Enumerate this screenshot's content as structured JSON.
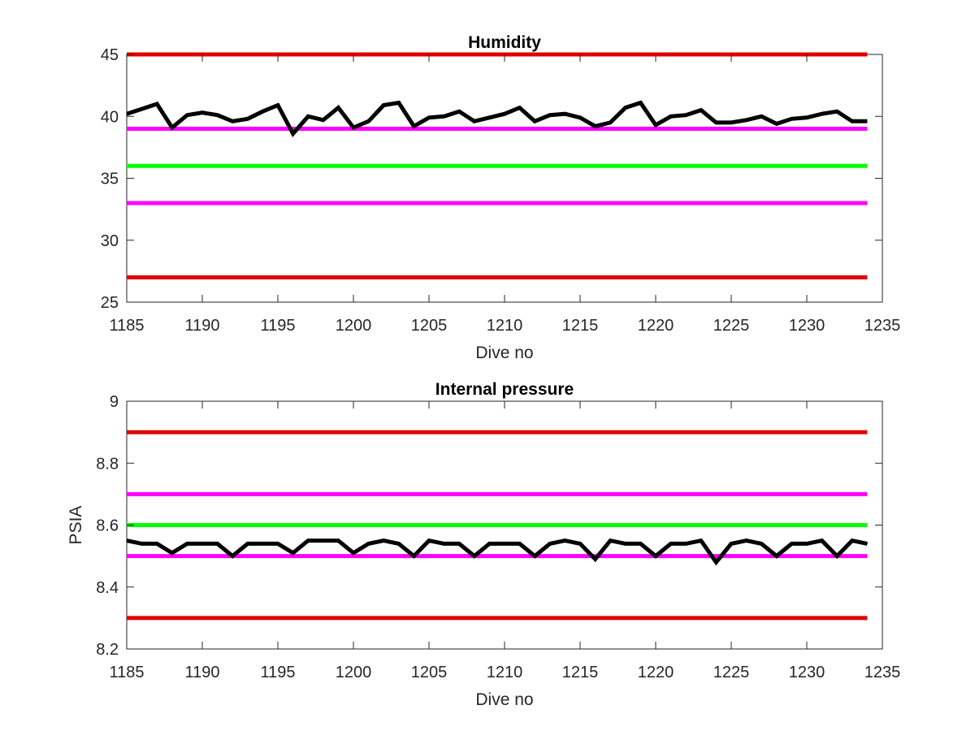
{
  "chart_data": [
    {
      "type": "line",
      "title": "Humidity",
      "xlabel": "Dive no",
      "ylabel": "",
      "xlim": [
        1185,
        1235
      ],
      "ylim": [
        25,
        45
      ],
      "xticks": [
        1185,
        1190,
        1195,
        1200,
        1205,
        1210,
        1215,
        1220,
        1225,
        1230,
        1235
      ],
      "yticks": [
        25,
        30,
        35,
        40,
        45
      ],
      "grid": false,
      "limit_lines": [
        {
          "y": 45,
          "color": "#e00000"
        },
        {
          "y": 39,
          "color": "#ff00ff"
        },
        {
          "y": 36,
          "color": "#00ff00"
        },
        {
          "y": 33,
          "color": "#ff00ff"
        },
        {
          "y": 27,
          "color": "#e00000"
        }
      ],
      "series": [
        {
          "color": "#000000",
          "x": [
            1185,
            1186,
            1187,
            1188,
            1189,
            1190,
            1191,
            1192,
            1193,
            1194,
            1195,
            1196,
            1197,
            1198,
            1199,
            1200,
            1201,
            1202,
            1203,
            1204,
            1205,
            1206,
            1207,
            1208,
            1209,
            1210,
            1211,
            1212,
            1213,
            1214,
            1215,
            1216,
            1217,
            1218,
            1219,
            1220,
            1221,
            1222,
            1223,
            1224,
            1225,
            1226,
            1227,
            1228,
            1229,
            1230,
            1231,
            1232,
            1233,
            1234
          ],
          "y": [
            40.2,
            40.6,
            41.0,
            39.1,
            40.1,
            40.3,
            40.1,
            39.6,
            39.8,
            40.4,
            40.9,
            38.6,
            40.0,
            39.7,
            40.7,
            39.1,
            39.6,
            40.9,
            41.1,
            39.2,
            39.9,
            40.0,
            40.4,
            39.6,
            39.9,
            40.2,
            40.7,
            39.6,
            40.1,
            40.2,
            39.9,
            39.2,
            39.5,
            40.7,
            41.1,
            39.3,
            40.0,
            40.1,
            40.5,
            39.5,
            39.5,
            39.7,
            40.0,
            39.4,
            39.8,
            39.9,
            40.2,
            40.4,
            39.6,
            39.6
          ]
        }
      ]
    },
    {
      "type": "line",
      "title": "Internal pressure",
      "xlabel": "Dive no",
      "ylabel": "PSIA",
      "xlim": [
        1185,
        1235
      ],
      "ylim": [
        8.2,
        9.0
      ],
      "xticks": [
        1185,
        1190,
        1195,
        1200,
        1205,
        1210,
        1215,
        1220,
        1225,
        1230,
        1235
      ],
      "yticks": [
        8.2,
        8.4,
        8.6,
        8.8,
        9.0
      ],
      "ytick_labels": [
        "8.2",
        "8.4",
        "8.6",
        "8.8",
        "9"
      ],
      "grid": false,
      "limit_lines": [
        {
          "y": 8.9,
          "color": "#e00000"
        },
        {
          "y": 8.7,
          "color": "#ff00ff"
        },
        {
          "y": 8.6,
          "color": "#00ff00"
        },
        {
          "y": 8.5,
          "color": "#ff00ff"
        },
        {
          "y": 8.3,
          "color": "#e00000"
        }
      ],
      "series": [
        {
          "color": "#000000",
          "x": [
            1185,
            1186,
            1187,
            1188,
            1189,
            1190,
            1191,
            1192,
            1193,
            1194,
            1195,
            1196,
            1197,
            1198,
            1199,
            1200,
            1201,
            1202,
            1203,
            1204,
            1205,
            1206,
            1207,
            1208,
            1209,
            1210,
            1211,
            1212,
            1213,
            1214,
            1215,
            1216,
            1217,
            1218,
            1219,
            1220,
            1221,
            1222,
            1223,
            1224,
            1225,
            1226,
            1227,
            1228,
            1229,
            1230,
            1231,
            1232,
            1233,
            1234
          ],
          "y": [
            8.55,
            8.54,
            8.54,
            8.51,
            8.54,
            8.54,
            8.54,
            8.5,
            8.54,
            8.54,
            8.54,
            8.51,
            8.55,
            8.55,
            8.55,
            8.51,
            8.54,
            8.55,
            8.54,
            8.5,
            8.55,
            8.54,
            8.54,
            8.5,
            8.54,
            8.54,
            8.54,
            8.5,
            8.54,
            8.55,
            8.54,
            8.49,
            8.55,
            8.54,
            8.54,
            8.5,
            8.54,
            8.54,
            8.55,
            8.48,
            8.54,
            8.55,
            8.54,
            8.5,
            8.54,
            8.54,
            8.55,
            8.5,
            8.55,
            8.54
          ]
        }
      ]
    }
  ]
}
